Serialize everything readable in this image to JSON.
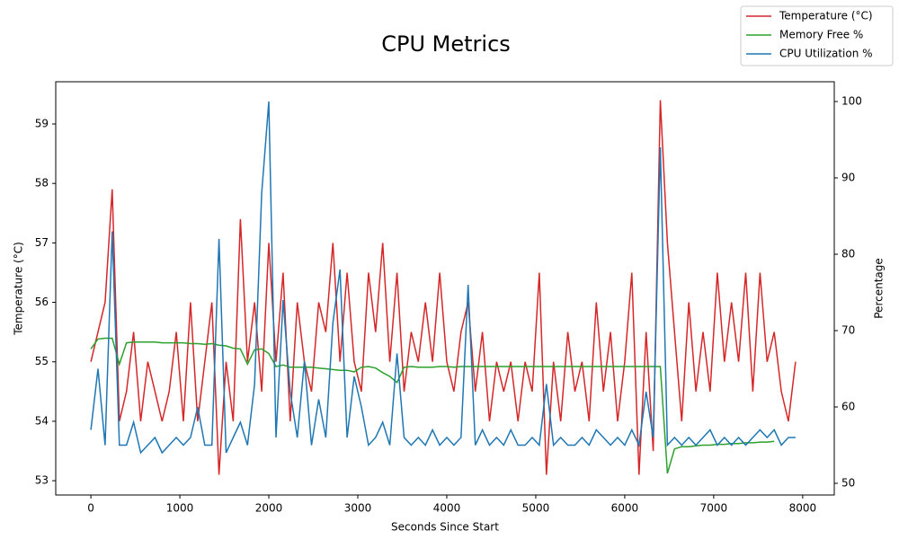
{
  "chart_data": {
    "type": "line",
    "title": "CPU Metrics",
    "xlabel": "Seconds Since Start",
    "ylabel": "Temperature (°C)",
    "y2label": "Percentage",
    "y_axis_color": "#d62728",
    "y2_axis_color": "#1f77b4",
    "legend": "upper right",
    "x": [
      0,
      80,
      160,
      240,
      320,
      400,
      480,
      560,
      640,
      720,
      800,
      880,
      960,
      1040,
      1120,
      1200,
      1280,
      1360,
      1440,
      1520,
      1600,
      1680,
      1760,
      1840,
      1920,
      2000,
      2080,
      2160,
      2240,
      2320,
      2400,
      2480,
      2560,
      2640,
      2720,
      2800,
      2880,
      2960,
      3040,
      3120,
      3200,
      3280,
      3360,
      3440,
      3520,
      3600,
      3680,
      3760,
      3840,
      3920,
      4000,
      4080,
      4160,
      4240,
      4320,
      4400,
      4480,
      4560,
      4640,
      4720,
      4800,
      4880,
      4960,
      5040,
      5120,
      5200,
      5280,
      5360,
      5440,
      5520,
      5600,
      5680,
      5760,
      5840,
      5920,
      6000,
      6080,
      6160,
      6240,
      6320,
      6400,
      6480,
      6560,
      6640,
      6720,
      6800,
      6880,
      6960,
      7040,
      7120,
      7200,
      7280,
      7360,
      7440,
      7520,
      7600,
      7680,
      7760,
      7840,
      7920
    ],
    "series": [
      {
        "name": "Temperature (°C)",
        "color": "#d62728",
        "axis": "y",
        "values": [
          55.0,
          55.5,
          56.0,
          57.9,
          54.0,
          54.5,
          55.5,
          54.0,
          55.0,
          54.5,
          54.0,
          54.5,
          55.5,
          54.0,
          56.0,
          54.0,
          55.0,
          56.0,
          53.1,
          55.0,
          54.0,
          57.4,
          55.0,
          56.0,
          54.5,
          57.0,
          55.0,
          56.5,
          54.0,
          56.0,
          55.0,
          54.5,
          56.0,
          55.5,
          57.0,
          55.0,
          56.5,
          55.0,
          54.5,
          56.5,
          55.5,
          57.0,
          55.0,
          56.5,
          54.5,
          55.5,
          55.0,
          56.0,
          55.0,
          56.5,
          55.0,
          54.5,
          55.5,
          56.0,
          54.5,
          55.5,
          54.0,
          55.0,
          54.5,
          55.0,
          54.0,
          55.0,
          54.5,
          56.5,
          53.1,
          55.0,
          54.0,
          55.5,
          54.5,
          55.0,
          54.0,
          56.0,
          54.5,
          55.5,
          54.0,
          55.0,
          56.5,
          53.1,
          55.5,
          53.5,
          59.4,
          57.0,
          55.5,
          54.0,
          56.0,
          54.5,
          55.5,
          54.5,
          56.5,
          55.0,
          56.0,
          55.0,
          56.5,
          54.5,
          56.5,
          55.0,
          55.5,
          54.5,
          54.0,
          55.0
        ]
      },
      {
        "name": "Memory Free %",
        "color": "#2ca02c",
        "axis": "y2",
        "values": [
          67.6,
          68.9,
          69.0,
          69.0,
          65.6,
          68.4,
          68.5,
          68.5,
          68.5,
          68.5,
          68.4,
          68.4,
          68.4,
          68.4,
          68.3,
          68.3,
          68.2,
          68.3,
          68.1,
          68.0,
          67.7,
          67.6,
          65.6,
          67.5,
          67.6,
          67.0,
          65.3,
          65.5,
          65.2,
          65.2,
          65.2,
          65.2,
          65.1,
          65.0,
          64.9,
          64.8,
          64.8,
          64.6,
          65.2,
          65.3,
          65.1,
          64.5,
          64.0,
          63.2,
          65.2,
          65.3,
          65.2,
          65.2,
          65.2,
          65.3,
          65.3,
          65.2,
          65.3,
          65.3,
          65.3,
          65.3,
          65.3,
          65.3,
          65.3,
          65.3,
          65.3,
          65.3,
          65.3,
          65.3,
          65.3,
          65.3,
          65.3,
          65.3,
          65.3,
          65.3,
          65.3,
          65.3,
          65.3,
          65.3,
          65.3,
          65.3,
          65.3,
          65.3,
          65.3,
          65.3,
          65.3,
          51.3,
          54.5,
          54.8,
          54.8,
          54.9,
          55.0,
          55.0,
          55.1,
          55.1,
          55.2,
          55.2,
          55.3,
          55.3,
          55.4,
          55.4,
          55.5,
          null,
          null,
          null
        ]
      },
      {
        "name": "CPU Utilization %",
        "color": "#1f77b4",
        "axis": "y2",
        "values": [
          57,
          65,
          55,
          83,
          55,
          55,
          58,
          54,
          55,
          56,
          54,
          55,
          56,
          55,
          56,
          60,
          55,
          55,
          82,
          54,
          56,
          58,
          55,
          63,
          88,
          100,
          56,
          74,
          62,
          56,
          66,
          55,
          61,
          56,
          71,
          78,
          56,
          64,
          60,
          55,
          56,
          58,
          55,
          67,
          56,
          55,
          56,
          55,
          57,
          55,
          56,
          55,
          56,
          76,
          55,
          57,
          55,
          56,
          55,
          57,
          55,
          55,
          56,
          55,
          63,
          55,
          56,
          55,
          55,
          56,
          55,
          57,
          56,
          55,
          56,
          55,
          57,
          55,
          62,
          56,
          94,
          55,
          56,
          55,
          56,
          55,
          56,
          57,
          55,
          56,
          55,
          56,
          55,
          56,
          57,
          56,
          57,
          55,
          56,
          56
        ]
      }
    ],
    "xlim": [
      -395,
      8355
    ],
    "xticks": [
      0,
      1000,
      2000,
      3000,
      4000,
      5000,
      6000,
      7000,
      8000
    ],
    "ylim": [
      52.76,
      59.71
    ],
    "yticks": [
      53,
      54,
      55,
      56,
      57,
      58,
      59
    ],
    "y2lim": [
      48.47,
      102.59
    ],
    "y2ticks": [
      50,
      60,
      70,
      80,
      90,
      100
    ]
  }
}
